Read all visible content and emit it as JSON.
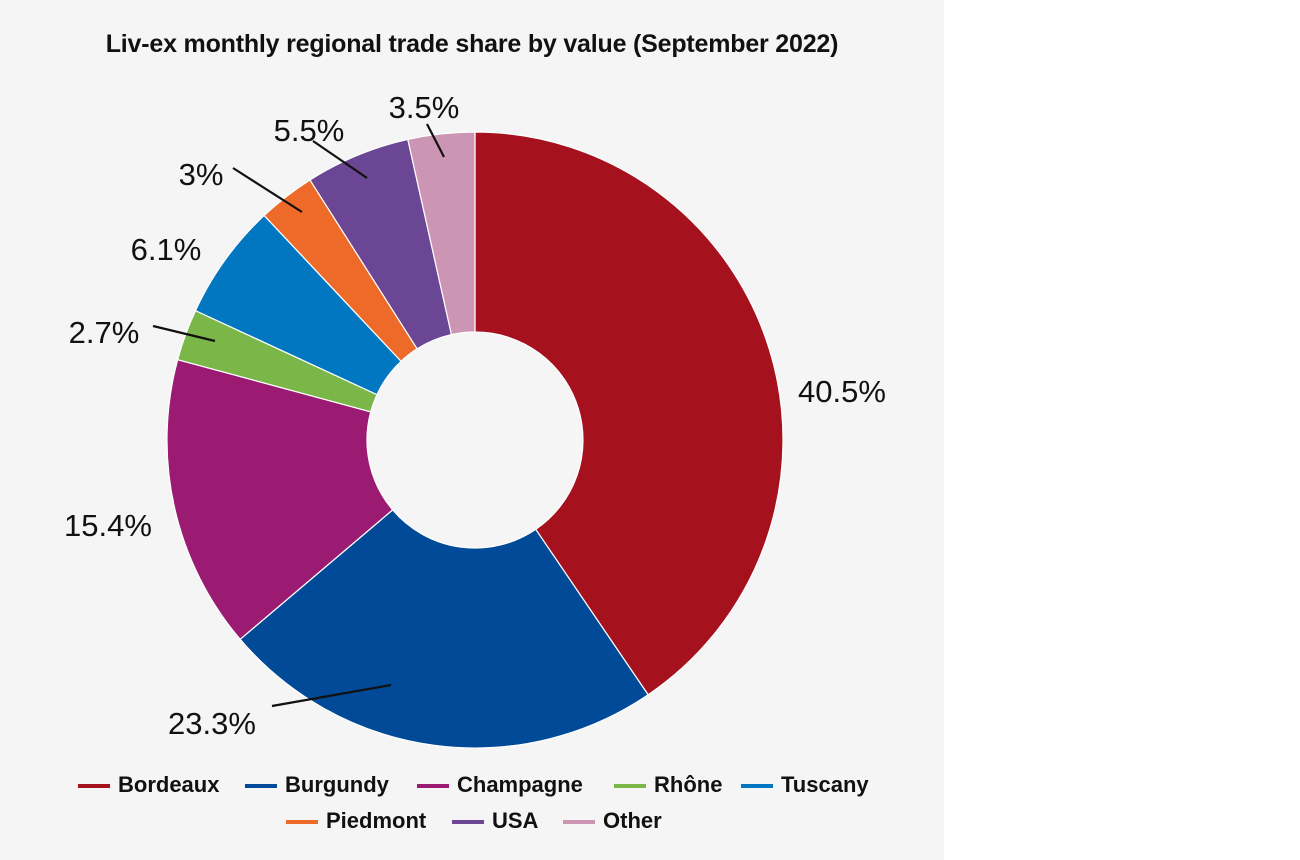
{
  "chart_data": {
    "type": "pie",
    "variant": "donut",
    "title": "Liv-ex monthly regional trade share by value (September 2022)",
    "slices": [
      {
        "name": "Bordeaux",
        "value": 40.5,
        "label": "40.5%",
        "color": "#a6111e"
      },
      {
        "name": "Burgundy",
        "value": 23.3,
        "label": "23.3%",
        "color": "#004a98"
      },
      {
        "name": "Champagne",
        "value": 15.4,
        "label": "15.4%",
        "color": "#9b1b72"
      },
      {
        "name": "Rhône",
        "value": 2.7,
        "label": "2.7%",
        "color": "#7ab648"
      },
      {
        "name": "Tuscany",
        "value": 6.1,
        "label": "6.1%",
        "color": "#0077c0"
      },
      {
        "name": "Piedmont",
        "value": 3,
        "label": "3%",
        "color": "#ee6a28"
      },
      {
        "name": "USA",
        "value": 5.5,
        "label": "5.5%",
        "color": "#6a4694"
      },
      {
        "name": "Other",
        "value": 3.5,
        "label": "3.5%",
        "color": "#cc95b3"
      }
    ],
    "legend": {
      "placement": "bottom",
      "rows": [
        [
          "Bordeaux",
          "Burgundy",
          "Champagne",
          "Rhône",
          "Tuscany"
        ],
        [
          "Piedmont",
          "USA",
          "Other"
        ]
      ]
    },
    "background": "#f5f5f5"
  }
}
